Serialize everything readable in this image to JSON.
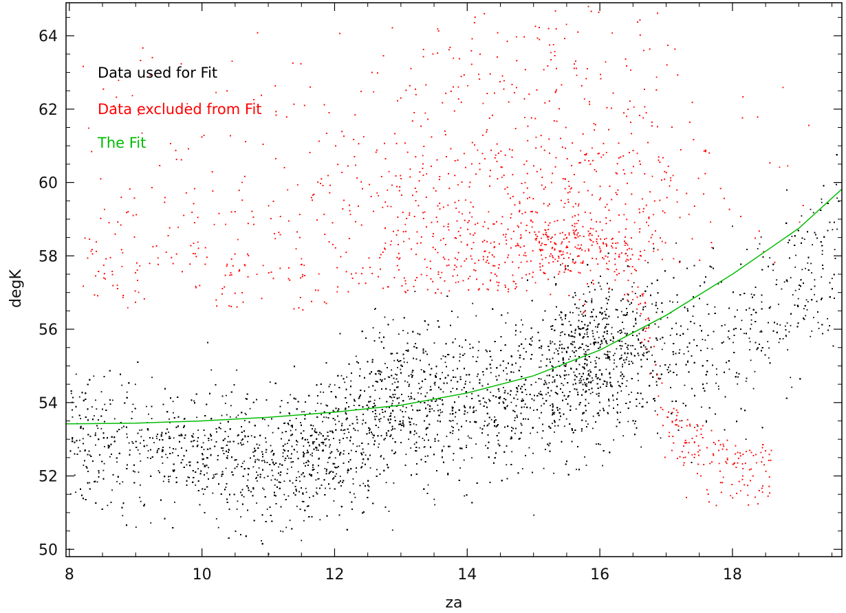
{
  "chart_data": {
    "type": "scatter",
    "title": "",
    "xlabel": "za",
    "ylabel": "degK",
    "xlim": [
      7.95,
      19.65
    ],
    "ylim": [
      49.8,
      64.9
    ],
    "xticks": [
      8,
      10,
      12,
      14,
      16,
      18
    ],
    "yticks": [
      50,
      52,
      54,
      56,
      58,
      60,
      62,
      64
    ],
    "xtick_labels": [
      "8",
      "10",
      "12",
      "14",
      "16",
      "18"
    ],
    "ytick_labels": [
      "50",
      "52",
      "54",
      "56",
      "58",
      "60",
      "62",
      "64"
    ],
    "grid": false,
    "legend_placement": "top-left",
    "series": [
      {
        "name": "Data used for Fit",
        "kind": "points",
        "color": "#000000",
        "approx_count": 14000,
        "trend_points": [
          [
            8,
            52.9
          ],
          [
            9,
            52.8
          ],
          [
            10,
            52.7
          ],
          [
            11,
            52.4
          ],
          [
            12,
            52.8
          ],
          [
            13,
            54.0
          ],
          [
            14,
            54.1
          ],
          [
            15,
            54.5
          ],
          [
            16,
            55.4
          ],
          [
            17,
            55.5
          ],
          [
            18,
            55.9
          ],
          [
            19,
            57.2
          ],
          [
            19.6,
            58.3
          ]
        ]
      },
      {
        "name": "Data excluded from Fit",
        "kind": "points",
        "color": "#ff0000",
        "approx_count": 3000,
        "trend_points": [
          [
            8.5,
            57.5
          ],
          [
            10,
            57.8
          ],
          [
            12,
            58.5
          ],
          [
            13,
            58.0
          ],
          [
            14,
            58.3
          ],
          [
            15,
            58.6
          ],
          [
            16,
            58.8
          ],
          [
            16.5,
            58.3
          ],
          [
            17,
            54.0
          ],
          [
            18,
            52.9
          ]
        ]
      },
      {
        "name": "The Fit",
        "kind": "line",
        "color": "#00bb00",
        "x": [
          7.95,
          9,
          10,
          11,
          12,
          13,
          14,
          15,
          16,
          17,
          18,
          19,
          19.65
        ],
        "y": [
          53.42,
          53.44,
          53.5,
          53.6,
          53.74,
          53.93,
          54.26,
          54.73,
          55.43,
          56.38,
          57.5,
          58.75,
          59.82
        ]
      }
    ],
    "legend": [
      {
        "label": "Data used for Fit",
        "color": "#000000"
      },
      {
        "label": "Data excluded from Fit",
        "color": "#ff0000"
      },
      {
        "label": "The Fit",
        "color": "#00bb00"
      }
    ]
  }
}
